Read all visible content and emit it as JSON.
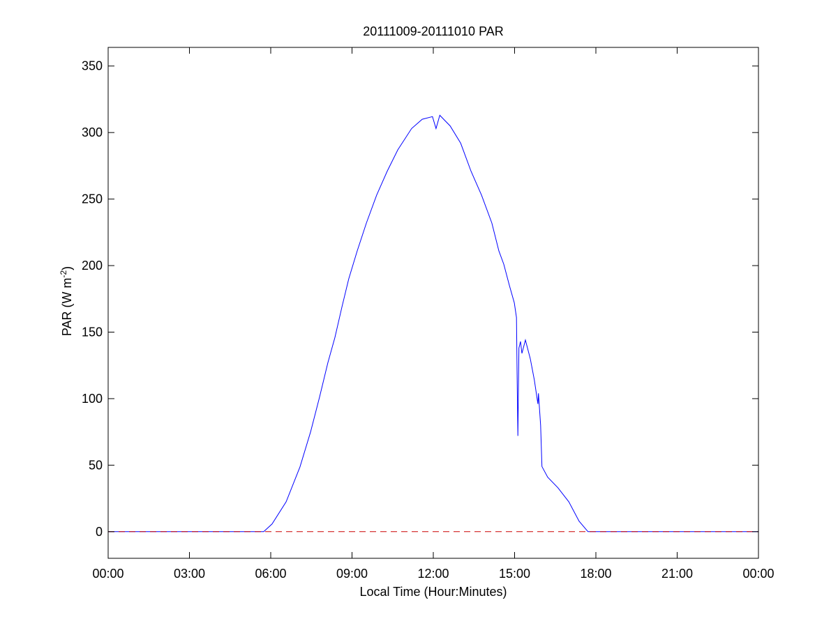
{
  "chart_data": {
    "type": "line",
    "title": "20111009-20111010 PAR",
    "xlabel": "Local Time (Hour:Minutes)",
    "ylabel": "PAR (W m",
    "ylabel_sup": "-2",
    "ylabel_close": ")",
    "xlim": [
      0,
      24
    ],
    "ylim": [
      -20,
      364
    ],
    "grid": false,
    "x_ticks": [
      0,
      3,
      6,
      9,
      12,
      15,
      18,
      21,
      24
    ],
    "x_tick_labels": [
      "00:00",
      "03:00",
      "06:00",
      "09:00",
      "12:00",
      "15:00",
      "18:00",
      "21:00",
      "00:00"
    ],
    "y_ticks": [
      0,
      50,
      100,
      150,
      200,
      250,
      300,
      350
    ],
    "y_tick_labels": [
      "0",
      "50",
      "100",
      "150",
      "200",
      "250",
      "300",
      "350"
    ],
    "series": [
      {
        "name": "PAR",
        "color": "#0000ff",
        "style": "solid",
        "x": [
          0,
          5.74,
          6.05,
          6.57,
          7.08,
          7.47,
          7.8,
          8.11,
          8.37,
          8.63,
          8.88,
          9.19,
          9.53,
          9.91,
          10.3,
          10.69,
          11.2,
          11.59,
          11.97,
          12.1,
          12.24,
          12.62,
          13.01,
          13.39,
          13.78,
          14.16,
          14.42,
          14.6,
          14.81,
          14.99,
          15.07,
          15.09,
          15.12,
          15.16,
          15.22,
          15.27,
          15.4,
          15.58,
          15.73,
          15.86,
          15.88,
          15.96,
          16.01,
          16.22,
          16.6,
          17.0,
          17.38,
          17.71,
          24
        ],
        "y": [
          0,
          0,
          5.8,
          22.5,
          48.7,
          75,
          101,
          127,
          146,
          169,
          190,
          211,
          232,
          253,
          271,
          287,
          303,
          310,
          312,
          303,
          313,
          305,
          292,
          271,
          253,
          232,
          211,
          201,
          185,
          172,
          161,
          122,
          72,
          138,
          143,
          134,
          144,
          130,
          114,
          96,
          104,
          80,
          49,
          41,
          33,
          22.5,
          7.9,
          0,
          0
        ]
      },
      {
        "name": "zero line",
        "color": "#cc0000",
        "style": "dashed",
        "x": [
          0,
          24
        ],
        "y": [
          0,
          0
        ]
      }
    ]
  }
}
